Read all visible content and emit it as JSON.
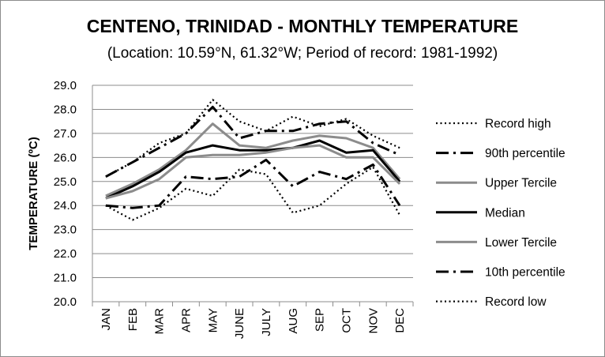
{
  "chart_data": {
    "type": "line",
    "title": "CENTENO, TRINIDAD - MONTHLY TEMPERATURE",
    "subtitle": "(Location: 10.59°N, 61.32°W; Period of record: 1981-1992)",
    "ylabel": "TEMPERATURE (ºC)",
    "xlabel": "",
    "ylim": [
      20.0,
      29.0
    ],
    "y_ticks": [
      "20.0",
      "21.0",
      "22.0",
      "23.0",
      "24.0",
      "25.0",
      "26.0",
      "27.0",
      "28.0",
      "29.0"
    ],
    "grid": true,
    "legend_position": "right",
    "categories": [
      "JAN",
      "FEB",
      "MAR",
      "APR",
      "MAY",
      "JUNE",
      "JULY",
      "AUG",
      "SEP",
      "OCT",
      "NOV",
      "DEC"
    ],
    "series": [
      {
        "name": "Record high",
        "style": "dotted",
        "color": "#000000",
        "width": 2.2,
        "values": [
          25.2,
          25.8,
          26.6,
          27.0,
          28.4,
          27.5,
          27.1,
          27.7,
          27.3,
          27.6,
          26.9,
          26.4
        ]
      },
      {
        "name": "90th percentile",
        "style": "dashdot",
        "color": "#000000",
        "width": 3,
        "values": [
          25.2,
          25.8,
          26.4,
          27.0,
          28.1,
          26.8,
          27.1,
          27.1,
          27.4,
          27.5,
          26.6,
          26.1
        ]
      },
      {
        "name": "Upper Tercile",
        "style": "solid",
        "color": "#8c8c8c",
        "width": 3,
        "values": [
          24.4,
          24.9,
          25.5,
          26.3,
          27.4,
          26.5,
          26.4,
          26.7,
          26.9,
          26.8,
          26.4,
          25.1
        ]
      },
      {
        "name": "Median",
        "style": "solid",
        "color": "#000000",
        "width": 3,
        "values": [
          24.3,
          24.8,
          25.4,
          26.2,
          26.5,
          26.3,
          26.3,
          26.4,
          26.7,
          26.2,
          26.3,
          25.0
        ]
      },
      {
        "name": "Lower Tercile",
        "style": "solid",
        "color": "#8c8c8c",
        "width": 3,
        "values": [
          24.3,
          24.6,
          25.1,
          26.0,
          26.1,
          26.1,
          26.2,
          26.4,
          26.5,
          26.0,
          26.0,
          24.9
        ]
      },
      {
        "name": "10th percentile",
        "style": "dashdot",
        "color": "#000000",
        "width": 3,
        "values": [
          24.0,
          23.9,
          24.0,
          25.2,
          25.1,
          25.2,
          25.9,
          24.8,
          25.4,
          25.1,
          25.7,
          24.0
        ]
      },
      {
        "name": "Record low",
        "style": "dotted",
        "color": "#000000",
        "width": 2.2,
        "values": [
          24.0,
          23.4,
          23.9,
          24.7,
          24.4,
          25.5,
          25.3,
          23.7,
          24.0,
          24.9,
          25.6,
          23.6
        ]
      }
    ]
  }
}
